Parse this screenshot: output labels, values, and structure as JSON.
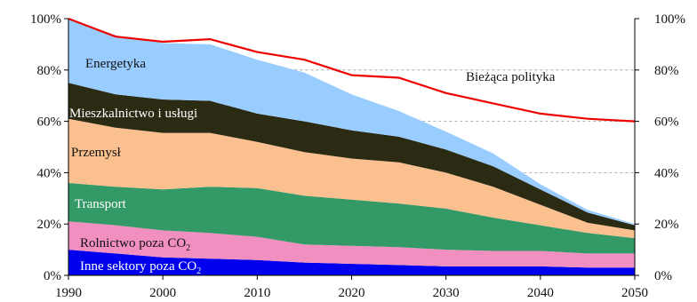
{
  "chart_data": {
    "type": "area",
    "stacked": true,
    "x": [
      1990,
      1995,
      2000,
      2005,
      2010,
      2015,
      2020,
      2025,
      2030,
      2035,
      2040,
      2045,
      2050
    ],
    "ylim": [
      0,
      100
    ],
    "xlim": [
      1990,
      2050
    ],
    "x_ticks": [
      "1990",
      "2000",
      "2010",
      "2020",
      "2030",
      "2040",
      "2050"
    ],
    "y_ticks_left": [
      "0%",
      "20%",
      "40%",
      "60%",
      "80%",
      "100%"
    ],
    "y_ticks_right": [
      "0%",
      "20%",
      "40%",
      "60%",
      "80%",
      "100%"
    ],
    "grid": "dashed horizontal lines, right part",
    "series": [
      {
        "name": "Inne sektory poza CO2",
        "label_main": "Inne sektory poza CO",
        "label_sub": "2",
        "color": "#0000ee",
        "label_color": "#ffffff",
        "values": [
          10,
          8.5,
          7,
          6.5,
          6,
          5,
          4.5,
          4,
          3.5,
          3.5,
          3.5,
          3,
          3
        ]
      },
      {
        "name": "Rolnictwo poza CO2",
        "label_main": "Rolnictwo poza CO",
        "label_sub": "2",
        "color": "#f08fc0",
        "label_color": "#111111",
        "values": [
          11,
          11,
          10.5,
          10,
          9,
          7,
          7,
          7,
          6.5,
          6,
          6,
          5.5,
          5.5
        ]
      },
      {
        "name": "Transport",
        "label_main": "Transport",
        "label_sub": "",
        "color": "#339966",
        "label_color": "#ffffff",
        "values": [
          15,
          15,
          16,
          18,
          19,
          19,
          18,
          17,
          16,
          13,
          10,
          8,
          6
        ]
      },
      {
        "name": "Przemysł",
        "label_main": "Przemysł",
        "label_sub": "",
        "color": "#fac08f",
        "label_color": "#111111",
        "values": [
          25,
          23,
          22,
          21,
          18,
          17,
          16,
          16,
          14,
          12,
          8,
          4,
          3
        ]
      },
      {
        "name": "Mieszkalnictwo i usługi",
        "label_main": "Mieszkalnictwo i usługi",
        "label_sub": "",
        "color": "#2b2b14",
        "label_color": "#ffffff",
        "values": [
          14,
          13,
          13,
          12.5,
          11,
          12,
          11,
          10,
          9,
          8,
          6,
          4,
          2
        ]
      },
      {
        "name": "Energetyka",
        "label_main": "Energetyka",
        "label_sub": "",
        "color": "#99ccff",
        "label_color": "#111111",
        "values": [
          25,
          23,
          22,
          22,
          21,
          19,
          14,
          10,
          7,
          5,
          2,
          1,
          0.5
        ]
      }
    ],
    "policy_line": {
      "name": "Bieżąca polityka",
      "color": "#ee0000",
      "values": [
        100,
        93,
        91,
        92,
        87,
        84,
        78,
        77,
        71,
        67,
        63,
        61,
        60
      ]
    }
  }
}
